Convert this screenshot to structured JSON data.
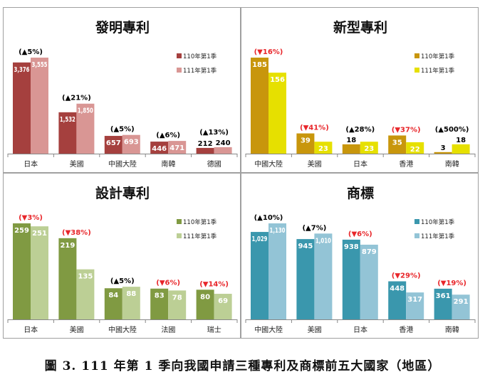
{
  "caption": "圖 3. 111 年第 1 季向我國申請三種專利及商標前五大國家（地區）",
  "chart_data": [
    {
      "type": "bar",
      "title": "發明專利",
      "categories": [
        "日本",
        "美國",
        "中國大陸",
        "南韓",
        "德國"
      ],
      "series": [
        {
          "name": "110年第1季",
          "values": [
            3376,
            1532,
            657,
            446,
            212
          ],
          "color": "#a5403e"
        },
        {
          "name": "111年第1季",
          "values": [
            3555,
            1850,
            693,
            471,
            240
          ],
          "color": "#d99694"
        }
      ],
      "changes": [
        "(▲5%)",
        "(▲21%)",
        "(▲5%)",
        "(▲6%)",
        "(▲13%)"
      ],
      "legend": "top-right",
      "grid": false
    },
    {
      "type": "bar",
      "title": "新型專利",
      "categories": [
        "中國大陸",
        "美國",
        "日本",
        "香港",
        "南韓"
      ],
      "series": [
        {
          "name": "110年第1季",
          "values": [
            185,
            39,
            18,
            35,
            3
          ],
          "color": "#c8960c"
        },
        {
          "name": "111年第1季",
          "values": [
            156,
            23,
            23,
            22,
            18
          ],
          "color": "#e6e000"
        }
      ],
      "changes": [
        "(▼16%)",
        "(▼41%)",
        "(▲28%)",
        "(▼37%)",
        "(▲500%)"
      ],
      "legend": "top-right",
      "grid": false
    },
    {
      "type": "bar",
      "title": "設計專利",
      "categories": [
        "日本",
        "美國",
        "中國大陸",
        "法國",
        "瑞士"
      ],
      "series": [
        {
          "name": "110年第1季",
          "values": [
            259,
            219,
            84,
            83,
            80
          ],
          "color": "#809a42"
        },
        {
          "name": "111年第1季",
          "values": [
            251,
            135,
            88,
            78,
            69
          ],
          "color": "#bccf95"
        }
      ],
      "changes": [
        "(▼3%)",
        "(▼38%)",
        "(▲5%)",
        "(▼6%)",
        "(▼14%)"
      ],
      "legend": "top-right",
      "grid": false
    },
    {
      "type": "bar",
      "title": "商標",
      "categories": [
        "中國大陸",
        "美國",
        "日本",
        "香港",
        "南韓"
      ],
      "series": [
        {
          "name": "110年第1季",
          "values": [
            1029,
            945,
            938,
            448,
            361
          ],
          "color": "#3a97ad"
        },
        {
          "name": "111年第1季",
          "values": [
            1130,
            1010,
            879,
            317,
            291
          ],
          "color": "#93c4d6"
        }
      ],
      "changes": [
        "(▲10%)",
        "(▲7%)",
        "(▼6%)",
        "(▼29%)",
        "(▼19%)"
      ],
      "legend": "top-right",
      "grid": false
    }
  ]
}
